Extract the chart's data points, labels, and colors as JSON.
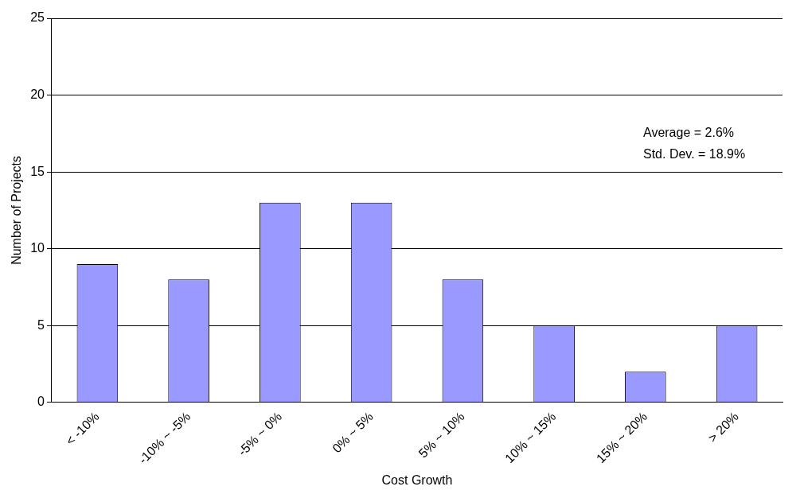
{
  "chart_data": {
    "type": "bar",
    "xlabel": "Cost Growth",
    "ylabel": "Number of Projects",
    "categories": [
      "< -10%",
      "-10% ~ -5%",
      "-5% ~ 0%",
      "0% ~ 5%",
      "5% ~ 10%",
      "10% ~ 15%",
      "15% ~ 20%",
      "> 20%"
    ],
    "values": [
      9,
      8,
      13,
      13,
      8,
      5,
      2,
      5
    ],
    "color": "#9999ff",
    "ylim": [
      0,
      25
    ],
    "yticks": [
      0,
      5,
      10,
      15,
      20,
      25
    ],
    "grid": "y",
    "legend": false,
    "annotations": [
      "Average = 2.6%",
      "Std. Dev. = 18.9%"
    ]
  }
}
